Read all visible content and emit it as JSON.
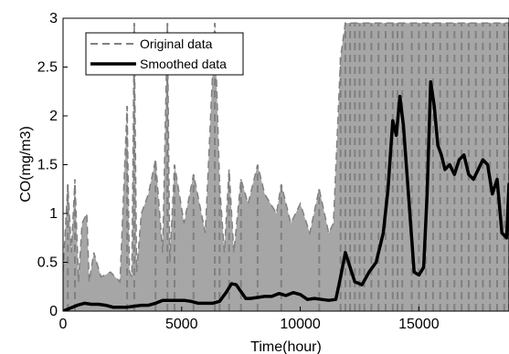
{
  "chart_data": {
    "type": "line",
    "title": "",
    "xlabel": "Time(hour)",
    "ylabel": "CO(mg/m3)",
    "xlim": [
      0,
      18800
    ],
    "ylim": [
      0,
      3
    ],
    "x_ticks": [
      0,
      5000,
      10000,
      15000
    ],
    "x_tick_labels": [
      "0",
      "5000",
      "10000",
      "15000"
    ],
    "y_ticks": [
      0,
      0.5,
      1,
      1.5,
      2,
      2.5,
      3
    ],
    "y_tick_labels": [
      "0",
      "0.5",
      "1",
      "1.5",
      "2",
      "2.5",
      "3"
    ],
    "grid": false,
    "legend_position": "top-left",
    "series": [
      {
        "name": "Original data",
        "style": "dashed",
        "color": "#808080",
        "x": [
          0,
          200,
          350,
          500,
          650,
          800,
          1000,
          1100,
          1300,
          1600,
          2000,
          2400,
          2700,
          2800,
          2900,
          3000,
          3100,
          3300,
          3600,
          3900,
          4200,
          4400,
          4500,
          4700,
          5100,
          5500,
          6000,
          6400,
          6600,
          6800,
          7000,
          7200,
          7500,
          7800,
          8200,
          8500,
          9000,
          9200,
          9600,
          10000,
          10400,
          10800,
          11200,
          11400,
          11700,
          11900,
          12100,
          12300,
          12500,
          12700,
          13000,
          13300,
          13600,
          13900,
          14100,
          14300,
          14700,
          15000,
          15300,
          15600,
          15900,
          16200,
          16500,
          16800,
          17100,
          17400,
          17700,
          18000,
          18300,
          18600,
          18800
        ],
        "values": [
          0.4,
          1.3,
          0.6,
          1.35,
          0.3,
          0.9,
          1.0,
          0.3,
          0.6,
          0.35,
          0.4,
          0.3,
          2.1,
          0.4,
          0.35,
          2.95,
          0.4,
          1.0,
          1.2,
          1.55,
          0.6,
          2.95,
          0.5,
          1.5,
          0.9,
          1.4,
          0.8,
          2.95,
          1.3,
          0.6,
          1.45,
          0.6,
          1.35,
          1.1,
          1.5,
          1.2,
          1.0,
          1.3,
          0.9,
          1.1,
          0.8,
          1.25,
          0.8,
          0.9,
          2.6,
          2.95,
          2.95,
          2.95,
          2.95,
          2.95,
          2.95,
          2.95,
          2.95,
          2.95,
          2.95,
          2.95,
          2.95,
          2.95,
          2.95,
          2.95,
          2.95,
          2.95,
          2.95,
          2.95,
          2.95,
          2.95,
          2.95,
          2.95,
          2.95,
          2.95,
          2.95
        ]
      },
      {
        "name": "Smoothed data",
        "style": "solid",
        "color": "#000000",
        "x": [
          0,
          300,
          600,
          900,
          1200,
          1500,
          1800,
          2100,
          2400,
          2700,
          3000,
          3300,
          3600,
          3900,
          4200,
          4500,
          4800,
          5100,
          5400,
          5700,
          6000,
          6300,
          6600,
          6900,
          7100,
          7300,
          7500,
          7700,
          7900,
          8200,
          8500,
          8800,
          9100,
          9400,
          9700,
          10000,
          10300,
          10600,
          10900,
          11200,
          11500,
          11700,
          11900,
          12100,
          12300,
          12600,
          12900,
          13200,
          13500,
          13700,
          13900,
          14050,
          14200,
          14350,
          14500,
          14650,
          14800,
          15000,
          15200,
          15350,
          15500,
          15650,
          15800,
          15950,
          16100,
          16300,
          16500,
          16700,
          16900,
          17100,
          17300,
          17500,
          17700,
          17900,
          18100,
          18300,
          18500,
          18700,
          18800
        ],
        "values": [
          0.0,
          0.03,
          0.06,
          0.08,
          0.07,
          0.07,
          0.06,
          0.04,
          0.04,
          0.04,
          0.05,
          0.06,
          0.06,
          0.08,
          0.11,
          0.11,
          0.11,
          0.11,
          0.1,
          0.08,
          0.08,
          0.08,
          0.1,
          0.2,
          0.28,
          0.27,
          0.2,
          0.13,
          0.13,
          0.14,
          0.15,
          0.15,
          0.18,
          0.16,
          0.19,
          0.17,
          0.12,
          0.13,
          0.12,
          0.11,
          0.12,
          0.35,
          0.6,
          0.45,
          0.3,
          0.27,
          0.4,
          0.5,
          0.8,
          1.25,
          1.95,
          1.8,
          2.2,
          1.9,
          1.4,
          0.9,
          0.4,
          0.37,
          0.45,
          1.2,
          2.35,
          2.1,
          1.7,
          1.6,
          1.45,
          1.5,
          1.4,
          1.55,
          1.6,
          1.4,
          1.35,
          1.45,
          1.55,
          1.5,
          1.2,
          1.35,
          0.8,
          0.75,
          1.3
        ]
      }
    ]
  }
}
